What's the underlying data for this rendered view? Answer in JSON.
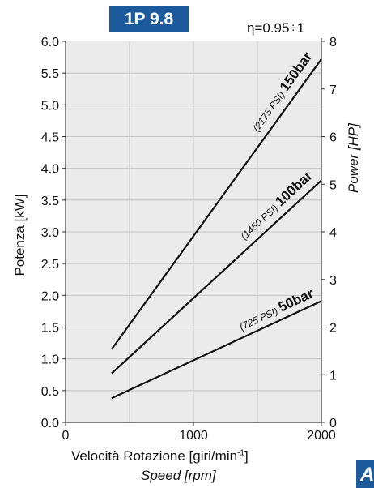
{
  "header": {
    "model_badge": "1P 9.8",
    "efficiency": "η=0.95÷1"
  },
  "axes": {
    "x_label_it": "Velocità Rotazione [giri/min",
    "x_label_it_sup": "-1",
    "x_label_it_end": "]",
    "x_label_en": "Speed [rpm]",
    "y_left_label": "Potenza [kW]",
    "y_right_label": "Power [HP]"
  },
  "chart_data": {
    "type": "line",
    "xlim": [
      0,
      2000
    ],
    "ylim_left": [
      0,
      6.0
    ],
    "ylim_right": [
      0,
      8
    ],
    "x_ticks": [
      "0",
      "1000",
      "2000"
    ],
    "y_left_ticks": [
      "0.0",
      "0.5",
      "1.0",
      "1.5",
      "2.0",
      "2.5",
      "3.0",
      "3.5",
      "4.0",
      "4.5",
      "5.0",
      "5.5",
      "6.0"
    ],
    "y_right_ticks": [
      "0",
      "1",
      "2",
      "3",
      "4",
      "5",
      "6",
      "7",
      "8"
    ],
    "grid": true,
    "series": [
      {
        "name": "150bar",
        "sub": "(2175 PSI)",
        "x": [
          360,
          2000
        ],
        "y": [
          1.15,
          5.72
        ]
      },
      {
        "name": "100bar",
        "sub": "(1450 PSI)",
        "x": [
          360,
          2000
        ],
        "y": [
          0.77,
          3.81
        ]
      },
      {
        "name": "50bar",
        "sub": "(725 PSI)",
        "x": [
          360,
          2000
        ],
        "y": [
          0.38,
          1.91
        ]
      }
    ]
  },
  "colors": {
    "plot_background": "#ebebeb",
    "grid": "#c4c4c4",
    "line": "#111111",
    "badge": "#1d5a9b"
  },
  "corner_logo_letter": "A"
}
